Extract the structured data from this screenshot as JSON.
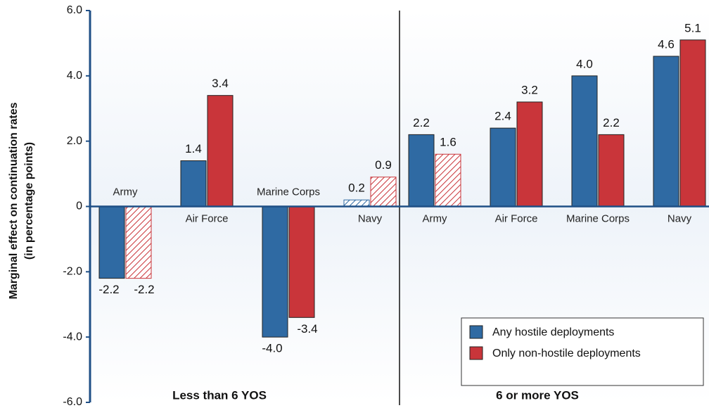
{
  "chart_data": {
    "type": "bar",
    "ylabel": [
      "Marginal effect on continuation rates",
      "(in percentage points)"
    ],
    "ylim": [
      -6,
      6
    ],
    "yticks": [
      {
        "value": 6,
        "label": "6.0"
      },
      {
        "value": 4,
        "label": "4.0"
      },
      {
        "value": 2,
        "label": "2.0"
      },
      0,
      {
        "value": -2,
        "label": "-2.0"
      },
      {
        "value": -4,
        "label": "-4.0"
      },
      {
        "value": -6,
        "label": "-6.0"
      }
    ],
    "series": [
      {
        "name": "Any hostile deployments",
        "color": "#2f6aa3"
      },
      {
        "name": "Only non-hostile deployments",
        "color": "#c9353a"
      }
    ],
    "panels": [
      {
        "label": "Less than 6 YOS",
        "categories": [
          "Army",
          "Air Force",
          "Marine Corps",
          "Navy"
        ],
        "series": [
          {
            "values": [
              -2.2,
              1.4,
              -4.0,
              0.2
            ],
            "value_labels": [
              "-2.2",
              "1.4",
              "-4.0",
              "0.2"
            ],
            "hatched": [
              false,
              false,
              false,
              true
            ]
          },
          {
            "values": [
              -2.2,
              3.4,
              -3.4,
              0.9
            ],
            "value_labels": [
              "-2.2",
              "3.4",
              "-3.4",
              "0.9"
            ],
            "hatched": [
              true,
              false,
              false,
              true
            ]
          }
        ]
      },
      {
        "label": "6 or more YOS",
        "categories": [
          "Army",
          "Air Force",
          "Marine Corps",
          "Navy"
        ],
        "series": [
          {
            "values": [
              2.2,
              2.4,
              4.0,
              4.6
            ],
            "value_labels": [
              "2.2",
              "2.4",
              "4.0",
              "4.6"
            ],
            "hatched": [
              false,
              false,
              false,
              false
            ]
          },
          {
            "values": [
              1.6,
              3.2,
              2.2,
              5.1
            ],
            "value_labels": [
              "1.6",
              "3.2",
              "2.2",
              "5.1"
            ],
            "hatched": [
              true,
              false,
              false,
              false
            ]
          }
        ]
      }
    ]
  }
}
